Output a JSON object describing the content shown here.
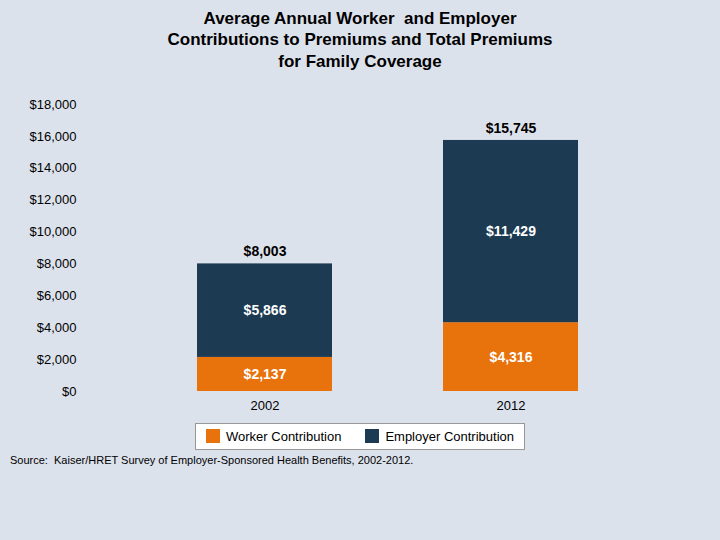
{
  "chart_data": {
    "type": "bar",
    "title": "Average Annual Worker  and Employer\nContributions to Premiums and Total Premiums\nfor Family Coverage",
    "categories": [
      "2002",
      "2012"
    ],
    "series": [
      {
        "name": "Worker Contribution",
        "color": "#e8720c",
        "values": [
          2137,
          4316
        ],
        "value_labels": [
          "$2,137",
          "$4,316"
        ]
      },
      {
        "name": "Employer Contribution",
        "color": "#1c3a52",
        "values": [
          5866,
          11429
        ],
        "value_labels": [
          "$5,866",
          "$11,429"
        ]
      }
    ],
    "totals": [
      8003,
      15745
    ],
    "total_labels": [
      "$8,003",
      "$15,745"
    ],
    "stacked": true,
    "data_labels": true,
    "ylim": [
      0,
      18000
    ],
    "yticks": [
      {
        "value": 0,
        "label": "$0"
      },
      {
        "value": 2000,
        "label": "$2,000"
      },
      {
        "value": 4000,
        "label": "$4,000"
      },
      {
        "value": 6000,
        "label": "$6,000"
      },
      {
        "value": 8000,
        "label": "$8,000"
      },
      {
        "value": 10000,
        "label": "$10,000"
      },
      {
        "value": 12000,
        "label": "$12,000"
      },
      {
        "value": 14000,
        "label": "$14,000"
      },
      {
        "value": 16000,
        "label": "$16,000"
      },
      {
        "value": 18000,
        "label": "$18,000"
      }
    ],
    "grid": false,
    "legend": "bottom",
    "background_color": "#dce2ec",
    "annotations": [
      "Source:  Kaiser/HRET Survey of Employer-Sponsored Health Benefits, 2002-2012."
    ]
  }
}
